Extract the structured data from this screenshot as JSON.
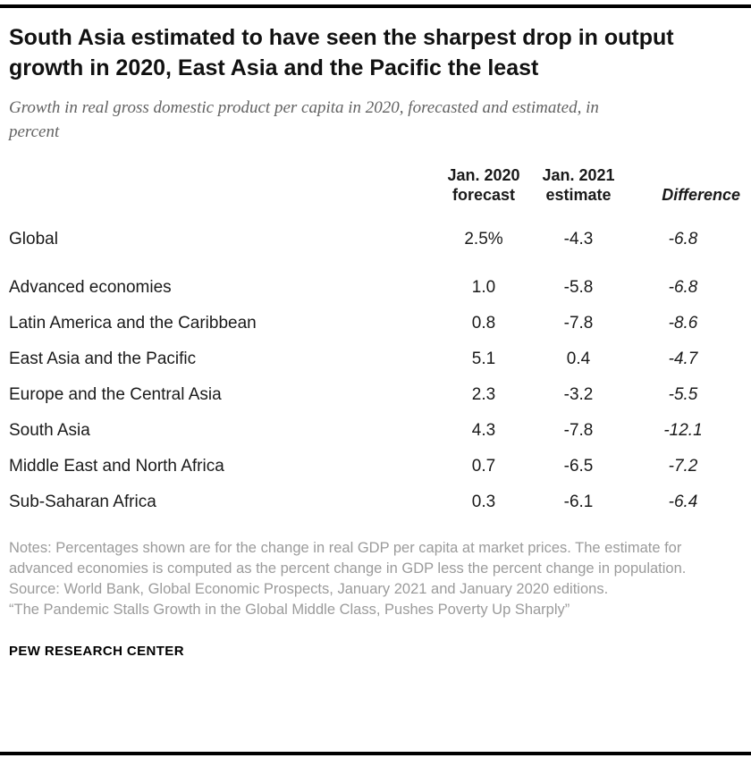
{
  "title": "South Asia estimated to have seen the sharpest drop in output growth in 2020, East Asia and the Pacific the least",
  "subtitle": "Growth in real gross domestic product per capita in 2020, forecasted and estimated, in percent",
  "chart_data": {
    "type": "table",
    "columns": [
      "Jan. 2020 forecast",
      "Jan. 2021 estimate",
      "Difference"
    ],
    "rows": [
      {
        "label": "Global",
        "forecast": "2.5%",
        "estimate": "-4.3",
        "difference": "-6.8"
      },
      {
        "label": "Advanced economies",
        "forecast": "1.0",
        "estimate": "-5.8",
        "difference": "-6.8"
      },
      {
        "label": "Latin America and the Caribbean",
        "forecast": "0.8",
        "estimate": "-7.8",
        "difference": "-8.6"
      },
      {
        "label": "East Asia and the Pacific",
        "forecast": "5.1",
        "estimate": "0.4",
        "difference": "-4.7"
      },
      {
        "label": "Europe and the Central Asia",
        "forecast": "2.3",
        "estimate": "-3.2",
        "difference": "-5.5"
      },
      {
        "label": "South Asia",
        "forecast": "4.3",
        "estimate": "-7.8",
        "difference": "-12.1"
      },
      {
        "label": "Middle East and North Africa",
        "forecast": "0.7",
        "estimate": "-6.5",
        "difference": "-7.2"
      },
      {
        "label": "Sub-Saharan Africa",
        "forecast": "0.3",
        "estimate": "-6.1",
        "difference": "-6.4"
      }
    ]
  },
  "notes": {
    "note": "Notes: Percentages shown are for the change in real GDP per capita at market prices. The estimate for advanced economies is computed as the percent change in GDP less the percent change in population.",
    "source": "Source: World Bank, Global Economic Prospects, January 2021 and January 2020 editions.",
    "quote": "“The Pandemic Stalls Growth in the Global Middle Class, Pushes Poverty Up Sharply”"
  },
  "footer": "PEW RESEARCH CENTER",
  "colors": {
    "rule": "#000000",
    "title": "#111111",
    "subtitle": "#636363",
    "notes": "#9b9b9b"
  }
}
